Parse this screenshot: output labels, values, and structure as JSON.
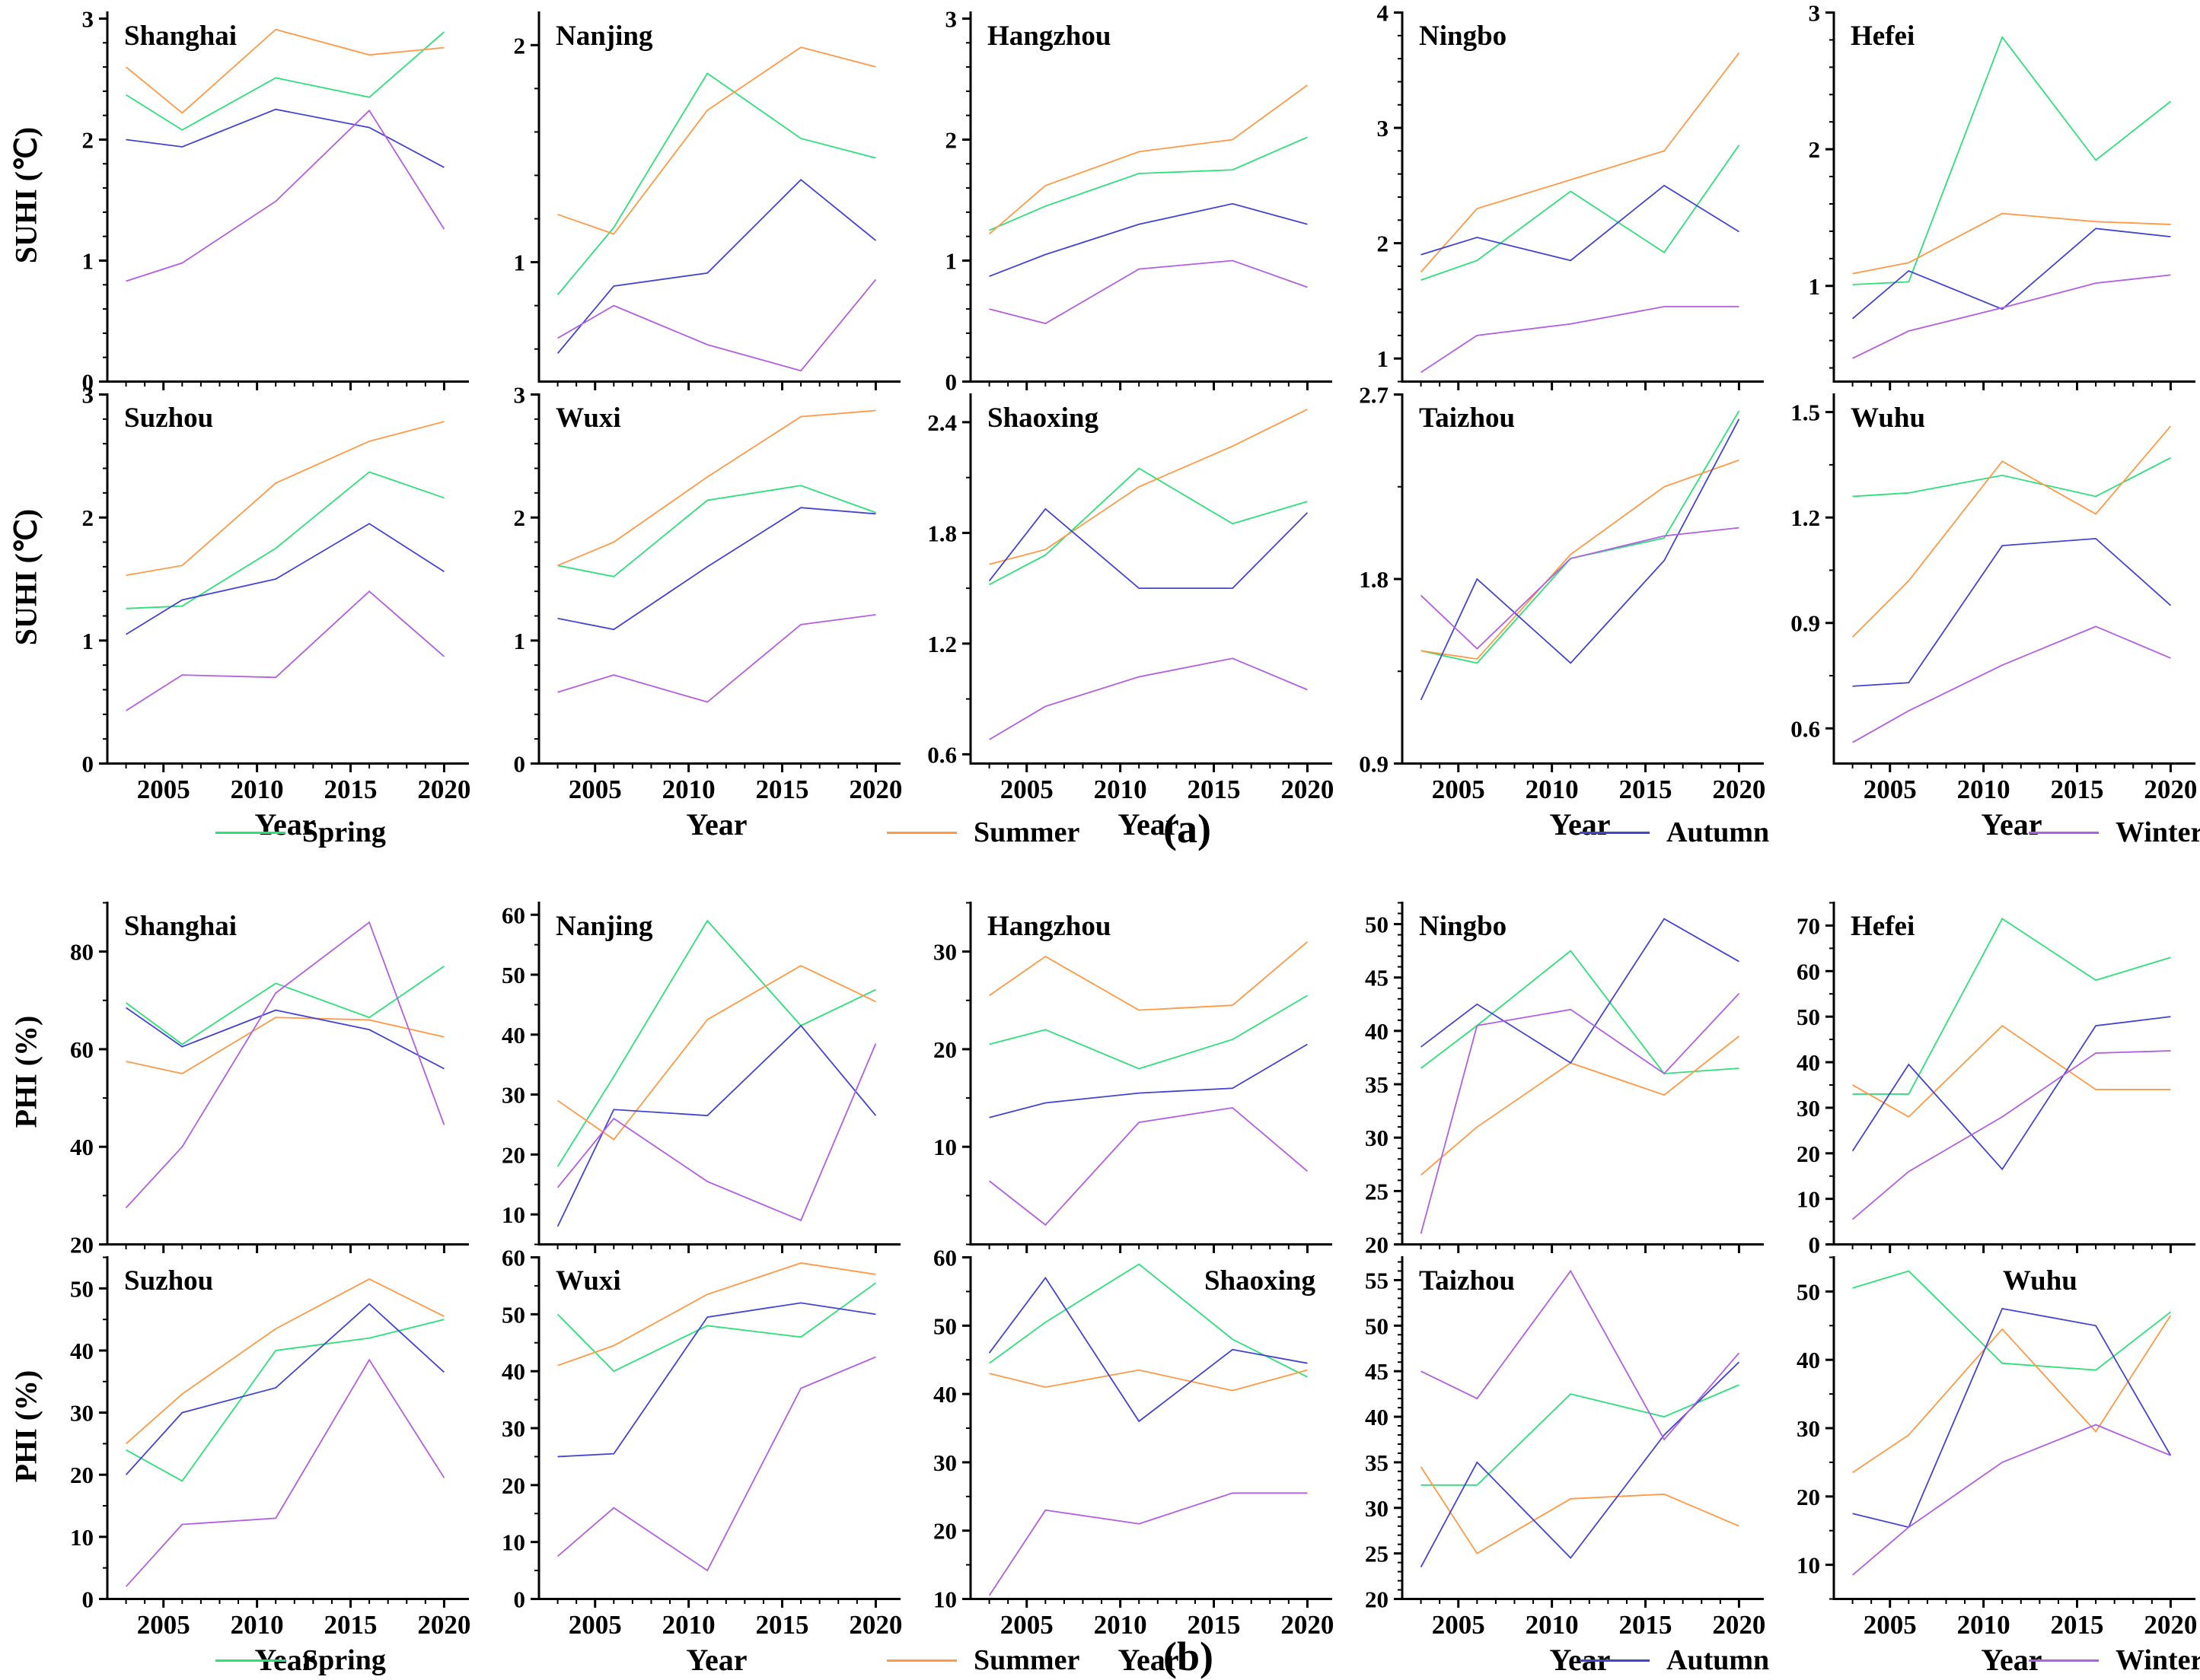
{
  "chart_data": {
    "type": "line",
    "xlabel": "Year",
    "x_years": [
      2003,
      2006,
      2011,
      2016,
      2020
    ],
    "xlim": [
      2002,
      2021
    ],
    "x_major_ticks": [
      2005,
      2010,
      2015,
      2020
    ],
    "legend": [
      {
        "key": "spring",
        "name": "Spring",
        "color": "#2ee07a"
      },
      {
        "key": "summer",
        "name": "Summer",
        "color": "#ff9946"
      },
      {
        "key": "autumn",
        "name": "Autumn",
        "color": "#4444d2"
      },
      {
        "key": "winter",
        "name": "Winter",
        "color": "#b15fe3"
      }
    ],
    "parts": [
      {
        "label": "(a)",
        "ylabel": "SUHI (℃)",
        "panels": [
          {
            "city": "Shanghai",
            "title_pos": "left",
            "ylim": [
              0,
              3.05
            ],
            "yticks": [
              0,
              1,
              2,
              3
            ],
            "series": {
              "spring": [
                2.37,
                2.08,
                2.51,
                2.35,
                2.89
              ],
              "summer": [
                2.6,
                2.22,
                2.91,
                2.7,
                2.76
              ],
              "autumn": [
                2.0,
                1.94,
                2.25,
                2.1,
                1.77
              ],
              "winter": [
                0.83,
                0.98,
                1.49,
                2.24,
                1.26
              ]
            }
          },
          {
            "city": "Nanjing",
            "title_pos": "left",
            "ylim": [
              0.45,
              2.15
            ],
            "yticks": [
              1,
              2
            ],
            "series": {
              "spring": [
                0.85,
                1.16,
                1.87,
                1.57,
                1.48
              ],
              "summer": [
                1.22,
                1.13,
                1.7,
                1.99,
                1.9
              ],
              "autumn": [
                0.58,
                0.89,
                0.95,
                1.38,
                1.1
              ],
              "winter": [
                0.65,
                0.8,
                0.62,
                0.5,
                0.92
              ]
            }
          },
          {
            "city": "Hangzhou",
            "title_pos": "left",
            "ylim": [
              0,
              3.05
            ],
            "yticks": [
              0,
              1,
              2,
              3
            ],
            "series": {
              "spring": [
                1.25,
                1.45,
                1.72,
                1.75,
                2.02
              ],
              "summer": [
                1.22,
                1.62,
                1.9,
                2.0,
                2.45
              ],
              "autumn": [
                0.87,
                1.05,
                1.3,
                1.47,
                1.3
              ],
              "winter": [
                0.6,
                0.48,
                0.93,
                1.0,
                0.78
              ]
            }
          },
          {
            "city": "Ningbo",
            "title_pos": "left",
            "ylim": [
              0.8,
              4.0
            ],
            "yticks": [
              1,
              2,
              3,
              4
            ],
            "series": {
              "spring": [
                1.68,
                1.85,
                2.45,
                1.92,
                2.85
              ],
              "summer": [
                1.75,
                2.3,
                2.55,
                2.8,
                3.65
              ],
              "autumn": [
                1.9,
                2.05,
                1.85,
                2.5,
                2.1
              ],
              "winter": [
                0.88,
                1.2,
                1.3,
                1.45,
                1.45
              ]
            }
          },
          {
            "city": "Hefei",
            "title_pos": "left",
            "ylim": [
              0.3,
              3.0
            ],
            "yticks": [
              1,
              2,
              3
            ],
            "series": {
              "spring": [
                1.01,
                1.03,
                2.82,
                1.92,
                2.35
              ],
              "summer": [
                1.09,
                1.17,
                1.53,
                1.47,
                1.45
              ],
              "autumn": [
                0.76,
                1.11,
                0.83,
                1.42,
                1.36
              ],
              "winter": [
                0.47,
                0.67,
                0.84,
                1.02,
                1.08
              ]
            }
          },
          {
            "city": "Suzhou",
            "title_pos": "left",
            "ylim": [
              0,
              3.0
            ],
            "yticks": [
              0,
              1,
              2,
              3
            ],
            "series": {
              "spring": [
                1.26,
                1.28,
                1.75,
                2.37,
                2.16
              ],
              "summer": [
                1.53,
                1.61,
                2.28,
                2.62,
                2.78
              ],
              "autumn": [
                1.05,
                1.33,
                1.5,
                1.95,
                1.56
              ],
              "winter": [
                0.43,
                0.72,
                0.7,
                1.4,
                0.87
              ]
            }
          },
          {
            "city": "Wuxi",
            "title_pos": "left",
            "ylim": [
              0,
              3.0
            ],
            "yticks": [
              0,
              1,
              2,
              3
            ],
            "series": {
              "spring": [
                1.61,
                1.52,
                2.14,
                2.26,
                2.04
              ],
              "summer": [
                1.61,
                1.8,
                2.33,
                2.82,
                2.87
              ],
              "autumn": [
                1.18,
                1.09,
                1.6,
                2.08,
                2.03
              ],
              "winter": [
                0.58,
                0.72,
                0.5,
                1.13,
                1.21
              ]
            }
          },
          {
            "city": "Shaoxing",
            "title_pos": "left",
            "ylim": [
              0.55,
              2.55
            ],
            "yticks": [
              0.6,
              1.2,
              1.8,
              2.4
            ],
            "series": {
              "spring": [
                1.52,
                1.68,
                2.15,
                1.85,
                1.97
              ],
              "summer": [
                1.63,
                1.71,
                2.05,
                2.27,
                2.47
              ],
              "autumn": [
                1.54,
                1.93,
                1.5,
                1.5,
                1.91
              ],
              "winter": [
                0.68,
                0.86,
                1.02,
                1.12,
                0.95
              ]
            }
          },
          {
            "city": "Taizhou",
            "title_pos": "left",
            "ylim": [
              0.9,
              2.7
            ],
            "yticks": [
              0.9,
              1.8,
              2.7
            ],
            "series": {
              "spring": [
                1.45,
                1.39,
                1.9,
                2.0,
                2.62
              ],
              "summer": [
                1.45,
                1.41,
                1.92,
                2.25,
                2.38
              ],
              "autumn": [
                1.21,
                1.8,
                1.39,
                1.89,
                2.58
              ],
              "winter": [
                1.72,
                1.46,
                1.9,
                2.01,
                2.05
              ]
            }
          },
          {
            "city": "Wuhu",
            "title_pos": "left",
            "ylim": [
              0.5,
              1.55
            ],
            "yticks": [
              0.6,
              0.9,
              1.2,
              1.5
            ],
            "series": {
              "spring": [
                1.26,
                1.27,
                1.32,
                1.26,
                1.37
              ],
              "summer": [
                0.86,
                1.02,
                1.36,
                1.21,
                1.46
              ],
              "autumn": [
                0.72,
                0.73,
                1.12,
                1.14,
                0.95
              ],
              "winter": [
                0.56,
                0.65,
                0.78,
                0.89,
                0.8
              ]
            }
          }
        ]
      },
      {
        "label": "(b)",
        "ylabel": "PHI (%)",
        "panels": [
          {
            "city": "Shanghai",
            "title_pos": "left",
            "ylim": [
              20,
              90
            ],
            "yticks": [
              20,
              40,
              60,
              80
            ],
            "series": {
              "spring": [
                69.5,
                61,
                73.5,
                66.5,
                77
              ],
              "summer": [
                57.5,
                55,
                66.5,
                66,
                62.5
              ],
              "autumn": [
                68.5,
                60.5,
                68,
                64,
                56
              ],
              "winter": [
                27.5,
                40,
                71.5,
                86,
                44.5
              ]
            }
          },
          {
            "city": "Nanjing",
            "title_pos": "left",
            "ylim": [
              5,
              62
            ],
            "yticks": [
              10,
              20,
              30,
              40,
              50,
              60
            ],
            "series": {
              "spring": [
                18,
                33,
                59,
                41.5,
                47.5
              ],
              "summer": [
                29,
                22.5,
                42.5,
                51.5,
                45.5
              ],
              "autumn": [
                8,
                27.5,
                26.5,
                41.5,
                26.5
              ],
              "winter": [
                14.5,
                26,
                15.5,
                9,
                38.5
              ]
            }
          },
          {
            "city": "Hangzhou",
            "title_pos": "left",
            "ylim": [
              0,
              35
            ],
            "yticks": [
              10,
              20,
              30
            ],
            "series": {
              "spring": [
                20.5,
                22,
                18,
                21,
                25.5
              ],
              "summer": [
                25.5,
                29.5,
                24,
                24.5,
                31
              ],
              "autumn": [
                13,
                14.5,
                15.5,
                16,
                20.5
              ],
              "winter": [
                6.5,
                2,
                12.5,
                14,
                7.5
              ]
            }
          },
          {
            "city": "Ningbo",
            "title_pos": "left",
            "ylim": [
              20,
              52
            ],
            "yticks": [
              20,
              25,
              30,
              35,
              40,
              45,
              50
            ],
            "series": {
              "spring": [
                36.5,
                40.5,
                47.5,
                36,
                36.5
              ],
              "summer": [
                26.5,
                31,
                37,
                34,
                39.5
              ],
              "autumn": [
                38.5,
                42.5,
                37,
                50.5,
                46.5
              ],
              "winter": [
                21,
                40.5,
                42,
                36,
                43.5
              ]
            }
          },
          {
            "city": "Hefei",
            "title_pos": "left",
            "ylim": [
              0,
              75
            ],
            "yticks": [
              0,
              10,
              20,
              30,
              40,
              50,
              60,
              70
            ],
            "series": {
              "spring": [
                33,
                33,
                71.5,
                58,
                63
              ],
              "summer": [
                35,
                28,
                48,
                34,
                34
              ],
              "autumn": [
                20.5,
                39.5,
                16.5,
                48,
                50
              ],
              "winter": [
                5.5,
                16,
                28,
                42,
                42.5
              ]
            }
          },
          {
            "city": "Suzhou",
            "title_pos": "left",
            "ylim": [
              0,
              55
            ],
            "yticks": [
              0,
              10,
              20,
              30,
              40,
              50
            ],
            "series": {
              "spring": [
                24,
                19,
                40,
                42,
                45
              ],
              "summer": [
                25,
                33,
                43.5,
                51.5,
                45.5
              ],
              "autumn": [
                20,
                30,
                34,
                47.5,
                36.5
              ],
              "winter": [
                2,
                12,
                13,
                38.5,
                19.5
              ]
            }
          },
          {
            "city": "Wuxi",
            "title_pos": "left",
            "ylim": [
              0,
              60
            ],
            "yticks": [
              0,
              10,
              20,
              30,
              40,
              50,
              60
            ],
            "series": {
              "spring": [
                50,
                40,
                48,
                46,
                55.5
              ],
              "summer": [
                41,
                44.5,
                53.5,
                59,
                57
              ],
              "autumn": [
                25,
                25.5,
                49.5,
                52,
                50
              ],
              "winter": [
                7.5,
                16,
                5,
                37,
                42.5
              ]
            }
          },
          {
            "city": "Shaoxing",
            "title_pos": "right",
            "ylim": [
              10,
              60
            ],
            "yticks": [
              10,
              20,
              30,
              40,
              50,
              60
            ],
            "series": {
              "spring": [
                44.5,
                50.5,
                59,
                48,
                42.5
              ],
              "summer": [
                43,
                41,
                43.5,
                40.5,
                43.5
              ],
              "autumn": [
                46,
                57,
                36,
                46.5,
                44.5
              ],
              "winter": [
                10.5,
                23,
                21,
                25.5,
                25.5
              ]
            }
          },
          {
            "city": "Taizhou",
            "title_pos": "left",
            "ylim": [
              20,
              57.5
            ],
            "yticks": [
              20,
              25,
              30,
              35,
              40,
              45,
              50,
              55
            ],
            "series": {
              "spring": [
                32.5,
                32.5,
                42.5,
                40,
                43.5
              ],
              "summer": [
                34.5,
                25,
                31,
                31.5,
                28
              ],
              "autumn": [
                23.5,
                35,
                24.5,
                38,
                46
              ],
              "winter": [
                45,
                42,
                56,
                37.5,
                47
              ]
            }
          },
          {
            "city": "Wuhu",
            "title_pos": "center",
            "ylim": [
              5,
              55
            ],
            "yticks": [
              10,
              20,
              30,
              40,
              50
            ],
            "series": {
              "spring": [
                50.5,
                53,
                39.5,
                38.5,
                47
              ],
              "summer": [
                23.5,
                29,
                44.5,
                29.5,
                46.5
              ],
              "autumn": [
                17.5,
                15.5,
                47.5,
                45,
                26
              ],
              "winter": [
                8.5,
                15.5,
                25,
                30.5,
                26
              ]
            }
          }
        ]
      }
    ]
  }
}
